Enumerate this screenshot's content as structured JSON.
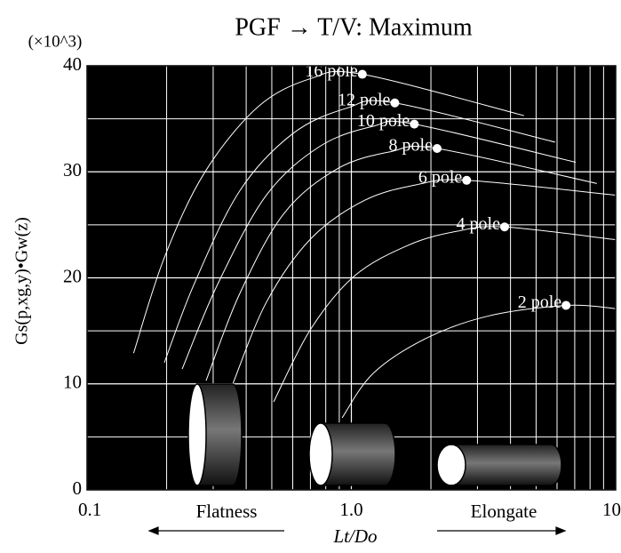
{
  "chart_data": {
    "type": "line",
    "title": "PGF → T/V: Maximum",
    "y_unit": "(×10^3)",
    "ylabel": "Gs(p,xg,y)•Gw(z)",
    "xlabel": "Lt/Do",
    "left_note": "Flatness",
    "right_note": "Elongate",
    "xscale": "log",
    "xlim": [
      0.1,
      10
    ],
    "xticks": [
      0.1,
      {
        "value": 1,
        "label": "1.0"
      },
      10
    ],
    "x_minor_grid": [
      0.2,
      0.3,
      0.4,
      0.5,
      0.6,
      0.7,
      0.8,
      0.9,
      2,
      3,
      4,
      5,
      6,
      7,
      8,
      9
    ],
    "ylim": [
      0,
      40
    ],
    "yticks": [
      0,
      10,
      20,
      30,
      40
    ],
    "y_minor_grid": [
      5,
      15,
      25,
      35
    ],
    "grid": true,
    "series": [
      {
        "name": "16 pole",
        "color": "#ffffff",
        "x": [
          0.15,
          0.196,
          0.278,
          0.442,
          0.703,
          1.1,
          4.5
        ],
        "values": [
          12.9,
          21.9,
          29.9,
          36.1,
          38.8,
          39.2,
          35.3
        ],
        "peak": [
          1.1,
          39.2
        ]
      },
      {
        "name": "12 pole",
        "color": "#ffffff",
        "x": [
          0.196,
          0.254,
          0.378,
          0.6,
          0.96,
          1.46,
          5.9
        ],
        "values": [
          12.0,
          19.4,
          28.2,
          33.6,
          36.0,
          36.5,
          32.8
        ],
        "peak": [
          1.46,
          36.5
        ]
      },
      {
        "name": "10 pole",
        "color": "#ffffff",
        "x": [
          0.229,
          0.312,
          0.477,
          0.76,
          1.21,
          1.73,
          7.06
        ],
        "values": [
          11.4,
          19.4,
          27.8,
          32.4,
          34.3,
          34.5,
          30.9
        ],
        "peak": [
          1.73,
          34.5
        ]
      },
      {
        "name": "8 pole",
        "color": "#ffffff",
        "x": [
          0.282,
          0.378,
          0.557,
          0.887,
          1.41,
          2.11,
          8.49
        ],
        "values": [
          10.3,
          18.5,
          26.1,
          30.3,
          31.9,
          32.2,
          28.9
        ],
        "peak": [
          2.11,
          32.2
        ]
      },
      {
        "name": "6 pole",
        "color": "#ffffff",
        "x": [
          0.356,
          0.477,
          0.703,
          1.12,
          1.78,
          2.73,
          10
        ],
        "values": [
          10.0,
          17.7,
          23.7,
          27.3,
          28.8,
          29.2,
          27.8
        ],
        "peak": [
          2.73,
          29.2
        ]
      },
      {
        "name": "4 pole",
        "color": "#ffffff",
        "x": [
          0.508,
          0.703,
          1.03,
          1.65,
          2.52,
          3.8,
          10
        ],
        "values": [
          8.3,
          15.2,
          20.2,
          23.1,
          24.4,
          24.8,
          23.6
        ],
        "peak": [
          3.8,
          24.8
        ]
      },
      {
        "name": "2 pole",
        "color": "#ffffff",
        "x": [
          0.923,
          1.21,
          1.92,
          3.3,
          6.49,
          10
        ],
        "values": [
          6.8,
          11.0,
          14.3,
          16.4,
          17.4,
          17.1
        ],
        "peak": [
          6.49,
          17.4
        ]
      }
    ]
  }
}
